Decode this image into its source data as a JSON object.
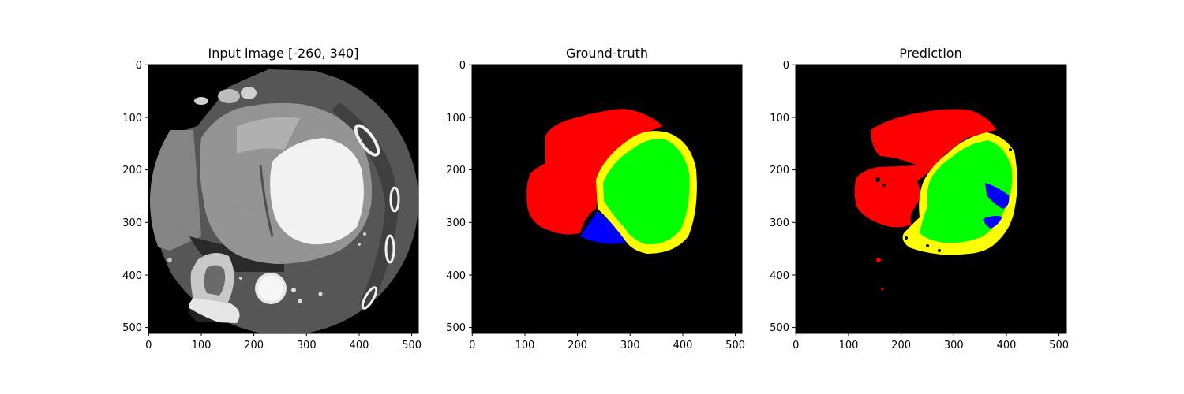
{
  "figure": {
    "panels": [
      {
        "id": "input",
        "title": "Input image [-260, 340]",
        "x_ticks": [
          "0",
          "100",
          "200",
          "300",
          "400",
          "500"
        ],
        "y_ticks": [
          "0",
          "100",
          "200",
          "300",
          "400",
          "500"
        ]
      },
      {
        "id": "ground-truth",
        "title": "Ground-truth",
        "x_ticks": [
          "0",
          "100",
          "200",
          "300",
          "400",
          "500"
        ],
        "y_ticks": [
          "0",
          "100",
          "200",
          "300",
          "400",
          "500"
        ]
      },
      {
        "id": "prediction",
        "title": "Prediction",
        "x_ticks": [
          "0",
          "100",
          "200",
          "300",
          "400",
          "500"
        ],
        "y_ticks": [
          "0",
          "100",
          "200",
          "300",
          "400",
          "500"
        ]
      }
    ],
    "label_colors": {
      "red": "#ff0000",
      "green": "#00ff00",
      "blue": "#0000ff",
      "yellow": "#ffff00"
    }
  }
}
